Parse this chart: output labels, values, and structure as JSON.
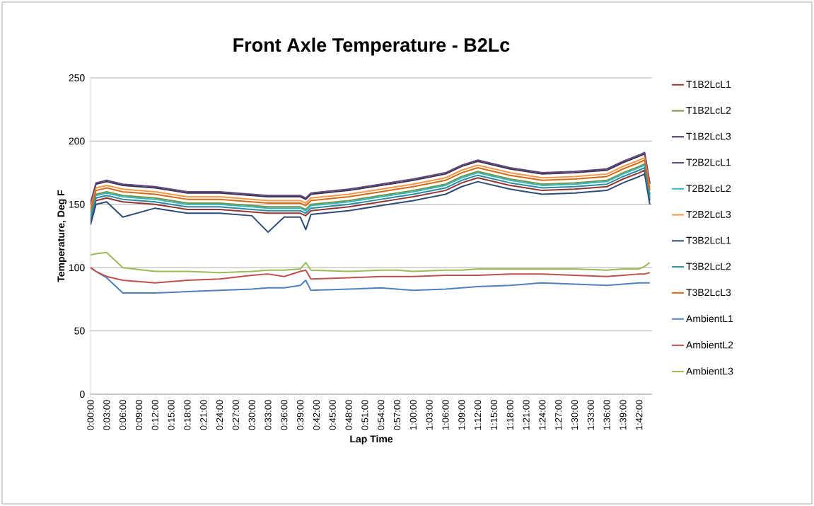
{
  "chart_data": {
    "type": "line",
    "title": "Front Axle Temperature - B2Lc",
    "xlabel": "Lap Time",
    "ylabel": "Temperature, Deg F",
    "x": [
      0,
      0.017,
      0.05,
      0.1,
      0.2,
      0.3,
      0.4,
      0.5,
      0.55,
      0.6,
      0.65,
      0.667,
      0.683,
      0.8,
      0.9,
      0.95,
      1.0,
      1.1,
      1.15,
      1.2,
      1.3,
      1.35,
      1.4,
      1.5,
      1.6,
      1.65,
      1.7,
      1.717,
      1.733
    ],
    "xlim": [
      0,
      1.74
    ],
    "xticks": [
      {
        "value": 0,
        "label": "0:00:00"
      },
      {
        "value": 0.05,
        "label": "0:03:00"
      },
      {
        "value": 0.1,
        "label": "0:06:00"
      },
      {
        "value": 0.15,
        "label": "0:09:00"
      },
      {
        "value": 0.2,
        "label": "0:12:00"
      },
      {
        "value": 0.25,
        "label": "0:15:00"
      },
      {
        "value": 0.3,
        "label": "0:18:00"
      },
      {
        "value": 0.35,
        "label": "0:21:00"
      },
      {
        "value": 0.4,
        "label": "0:24:00"
      },
      {
        "value": 0.45,
        "label": "0:27:00"
      },
      {
        "value": 0.5,
        "label": "0:30:00"
      },
      {
        "value": 0.55,
        "label": "0:33:00"
      },
      {
        "value": 0.6,
        "label": "0:36:00"
      },
      {
        "value": 0.65,
        "label": "0:39:00"
      },
      {
        "value": 0.7,
        "label": "0:42:00"
      },
      {
        "value": 0.75,
        "label": "0:45:00"
      },
      {
        "value": 0.8,
        "label": "0:48:00"
      },
      {
        "value": 0.85,
        "label": "0:51:00"
      },
      {
        "value": 0.9,
        "label": "0:54:00"
      },
      {
        "value": 0.95,
        "label": "0:57:00"
      },
      {
        "value": 1.0,
        "label": "1:00:00"
      },
      {
        "value": 1.05,
        "label": "1:03:00"
      },
      {
        "value": 1.1,
        "label": "1:06:00"
      },
      {
        "value": 1.15,
        "label": "1:09:00"
      },
      {
        "value": 1.2,
        "label": "1:12:00"
      },
      {
        "value": 1.25,
        "label": "1:15:00"
      },
      {
        "value": 1.3,
        "label": "1:18:00"
      },
      {
        "value": 1.35,
        "label": "1:21:00"
      },
      {
        "value": 1.4,
        "label": "1:24:00"
      },
      {
        "value": 1.45,
        "label": "1:27:00"
      },
      {
        "value": 1.5,
        "label": "1:30:00"
      },
      {
        "value": 1.55,
        "label": "1:33:00"
      },
      {
        "value": 1.6,
        "label": "1:36:00"
      },
      {
        "value": 1.65,
        "label": "1:39:00"
      },
      {
        "value": 1.7,
        "label": "1:42:00"
      }
    ],
    "ylim": [
      0,
      250
    ],
    "yticks": [
      0,
      50,
      100,
      150,
      200,
      250
    ],
    "grid": "y",
    "legend": "right",
    "marker": "none",
    "line_style": "solid",
    "series": [
      {
        "name": "T1B2LcL1",
        "color": "#943634",
        "values": [
          137,
          153,
          155,
          152,
          150,
          146,
          146,
          144,
          143,
          143,
          143,
          141,
          145,
          148,
          152,
          154,
          156,
          161,
          167,
          171,
          165,
          163,
          161,
          162,
          164,
          170,
          175,
          177,
          153
        ]
      },
      {
        "name": "T1B2LcL2",
        "color": "#77933c",
        "values": [
          142,
          158,
          160,
          157,
          155,
          151,
          151,
          149,
          148,
          148,
          148,
          146,
          150,
          153,
          157,
          159,
          161,
          166,
          172,
          176,
          170,
          168,
          166,
          167,
          169,
          175,
          180,
          182,
          158
        ]
      },
      {
        "name": "T1B2LcL3",
        "color": "#403152",
        "values": [
          150,
          166,
          168,
          165,
          163,
          159,
          159,
          157,
          156,
          156,
          156,
          154,
          158,
          161,
          165,
          167,
          169,
          174,
          180,
          184,
          178,
          176,
          174,
          175,
          177,
          183,
          188,
          190,
          166
        ]
      },
      {
        "name": "T2B2LcL1",
        "color": "#5f497a",
        "values": [
          151,
          167,
          169,
          166,
          164,
          160,
          160,
          158,
          157,
          157,
          157,
          155,
          159,
          162,
          166,
          168,
          170,
          175,
          181,
          185,
          179,
          177,
          175,
          176,
          178,
          184,
          189,
          191,
          167
        ]
      },
      {
        "name": "T2B2LcL2",
        "color": "#31b6c4",
        "values": [
          141,
          157,
          159,
          156,
          154,
          150,
          150,
          148,
          147,
          147,
          147,
          145,
          149,
          152,
          156,
          158,
          160,
          165,
          171,
          175,
          169,
          167,
          165,
          166,
          168,
          174,
          179,
          181,
          157
        ]
      },
      {
        "name": "T2B2LcL3",
        "color": "#f79646",
        "values": [
          147,
          163,
          165,
          162,
          160,
          156,
          156,
          154,
          153,
          153,
          153,
          151,
          155,
          158,
          162,
          164,
          166,
          171,
          177,
          181,
          175,
          173,
          171,
          172,
          174,
          180,
          185,
          187,
          163
        ]
      },
      {
        "name": "T3B2LcL1",
        "color": "#2c4d75",
        "values": [
          134,
          150,
          152,
          140,
          147,
          143,
          143,
          141,
          128,
          140,
          140,
          130,
          142,
          145,
          149,
          151,
          153,
          158,
          164,
          168,
          162,
          160,
          158,
          159,
          161,
          167,
          172,
          174,
          150
        ]
      },
      {
        "name": "T3B2LcL2",
        "color": "#2c8ba0",
        "values": [
          139,
          155,
          157,
          154,
          152,
          148,
          148,
          146,
          145,
          145,
          145,
          143,
          147,
          150,
          154,
          156,
          158,
          163,
          169,
          173,
          167,
          165,
          163,
          164,
          166,
          172,
          177,
          179,
          155
        ]
      },
      {
        "name": "T3B2LcL3",
        "color": "#d46b18",
        "values": [
          145,
          161,
          163,
          160,
          158,
          154,
          154,
          152,
          151,
          151,
          151,
          149,
          153,
          156,
          160,
          162,
          164,
          169,
          175,
          179,
          173,
          171,
          169,
          170,
          172,
          178,
          183,
          185,
          161
        ]
      },
      {
        "name": "AmbientL1",
        "color": "#4f81bd",
        "values": [
          100,
          97,
          92,
          80,
          80,
          81,
          82,
          83,
          84,
          84,
          86,
          90,
          82,
          83,
          84,
          83,
          82,
          83,
          84,
          85,
          86,
          87,
          88,
          87,
          86,
          87,
          88,
          88,
          88
        ]
      },
      {
        "name": "AmbientL2",
        "color": "#c0504d",
        "values": [
          100,
          97,
          93,
          90,
          88,
          90,
          91,
          94,
          95,
          93,
          97,
          98,
          91,
          92,
          93,
          93,
          93,
          94,
          94,
          94,
          95,
          95,
          95,
          94,
          93,
          94,
          95,
          95,
          96
        ]
      },
      {
        "name": "AmbientL3",
        "color": "#9bbb59",
        "values": [
          110,
          111,
          112,
          100,
          97,
          97,
          96,
          97,
          98,
          98,
          99,
          104,
          98,
          97,
          98,
          98,
          97,
          98,
          98,
          99,
          99,
          99,
          99,
          99,
          98,
          99,
          99,
          101,
          104
        ]
      }
    ]
  }
}
